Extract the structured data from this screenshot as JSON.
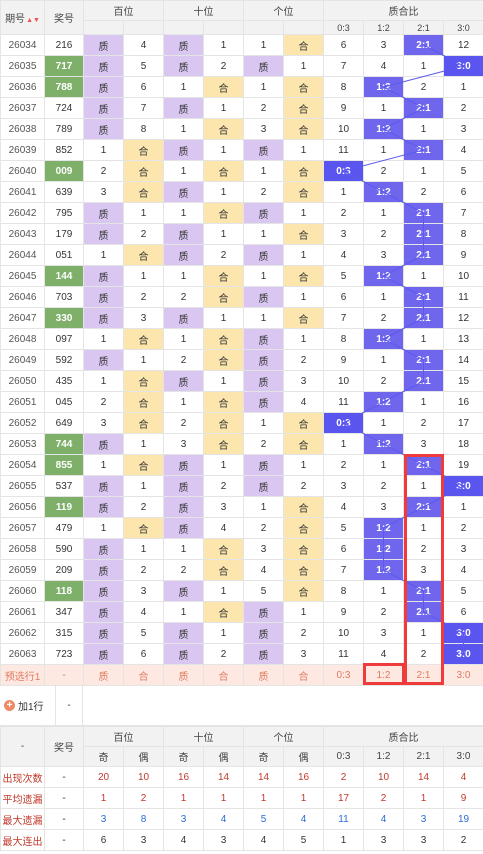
{
  "header": {
    "period": "期号",
    "award": "奖号",
    "groups": [
      "百位",
      "十位",
      "个位",
      "质合比"
    ],
    "sub_odd_even": [
      "奇",
      "偶"
    ],
    "ratios": [
      "0:3",
      "1:2",
      "2:1",
      "3:0"
    ]
  },
  "rows": [
    {
      "p": "26034",
      "n": "216",
      "g": [
        [
          "质",
          "4"
        ],
        [
          "质",
          "1"
        ],
        [
          "1",
          "合"
        ]
      ],
      "r": [
        "6",
        "3",
        "2:1",
        "12"
      ],
      "hl": 2,
      "pr": false
    },
    {
      "p": "26035",
      "n": "717",
      "g": [
        [
          "质",
          "5"
        ],
        [
          "质",
          "2"
        ],
        [
          "质",
          "1"
        ]
      ],
      "r": [
        "7",
        "4",
        "1",
        "3:0"
      ],
      "hl": 3,
      "pr": true
    },
    {
      "p": "26036",
      "n": "788",
      "g": [
        [
          "质",
          "6"
        ],
        [
          "1",
          "合"
        ],
        [
          "1",
          "合"
        ]
      ],
      "r": [
        "8",
        "1:2",
        "2",
        "1"
      ],
      "hl": 1,
      "pr": true
    },
    {
      "p": "26037",
      "n": "724",
      "g": [
        [
          "质",
          "7"
        ],
        [
          "质",
          "1"
        ],
        [
          "2",
          "合"
        ]
      ],
      "r": [
        "9",
        "1",
        "2:1",
        "2"
      ],
      "hl": 2,
      "pr": false
    },
    {
      "p": "26038",
      "n": "789",
      "g": [
        [
          "质",
          "8"
        ],
        [
          "1",
          "合"
        ],
        [
          "3",
          "合"
        ]
      ],
      "r": [
        "10",
        "1:2",
        "1",
        "3"
      ],
      "hl": 1,
      "pr": false
    },
    {
      "p": "26039",
      "n": "852",
      "g": [
        [
          "1",
          "合"
        ],
        [
          "质",
          "1"
        ],
        [
          "质",
          "1"
        ]
      ],
      "r": [
        "11",
        "1",
        "2:1",
        "4"
      ],
      "hl": 2,
      "pr": false
    },
    {
      "p": "26040",
      "n": "009",
      "g": [
        [
          "2",
          "合"
        ],
        [
          "1",
          "合"
        ],
        [
          "1",
          "合"
        ]
      ],
      "r": [
        "0:3",
        "2",
        "1",
        "5"
      ],
      "hl": 0,
      "pr": true
    },
    {
      "p": "26041",
      "n": "639",
      "g": [
        [
          "3",
          "合"
        ],
        [
          "质",
          "1"
        ],
        [
          "2",
          "合"
        ]
      ],
      "r": [
        "1",
        "1:2",
        "2",
        "6"
      ],
      "hl": 1,
      "pr": false
    },
    {
      "p": "26042",
      "n": "795",
      "g": [
        [
          "质",
          "1"
        ],
        [
          "1",
          "合"
        ],
        [
          "质",
          "1"
        ]
      ],
      "r": [
        "2",
        "1",
        "2:1",
        "7"
      ],
      "hl": 2,
      "pr": false
    },
    {
      "p": "26043",
      "n": "179",
      "g": [
        [
          "质",
          "2"
        ],
        [
          "质",
          "1"
        ],
        [
          "1",
          "合"
        ]
      ],
      "r": [
        "3",
        "2",
        "2:1",
        "8"
      ],
      "hl": 2,
      "pr": false
    },
    {
      "p": "26044",
      "n": "051",
      "g": [
        [
          "1",
          "合"
        ],
        [
          "质",
          "2"
        ],
        [
          "质",
          "1"
        ]
      ],
      "r": [
        "4",
        "3",
        "2:1",
        "9"
      ],
      "hl": 2,
      "pr": false
    },
    {
      "p": "26045",
      "n": "144",
      "g": [
        [
          "质",
          "1"
        ],
        [
          "1",
          "合"
        ],
        [
          "1",
          "合"
        ]
      ],
      "r": [
        "5",
        "1:2",
        "1",
        "10"
      ],
      "hl": 1,
      "pr": true
    },
    {
      "p": "26046",
      "n": "703",
      "g": [
        [
          "质",
          "2"
        ],
        [
          "2",
          "合"
        ],
        [
          "质",
          "1"
        ]
      ],
      "r": [
        "6",
        "1",
        "2:1",
        "11"
      ],
      "hl": 2,
      "pr": false
    },
    {
      "p": "26047",
      "n": "330",
      "g": [
        [
          "质",
          "3"
        ],
        [
          "质",
          "1"
        ],
        [
          "1",
          "合"
        ]
      ],
      "r": [
        "7",
        "2",
        "2:1",
        "12"
      ],
      "hl": 2,
      "pr": true
    },
    {
      "p": "26048",
      "n": "097",
      "g": [
        [
          "1",
          "合"
        ],
        [
          "1",
          "合"
        ],
        [
          "质",
          "1"
        ]
      ],
      "r": [
        "8",
        "1:2",
        "1",
        "13"
      ],
      "hl": 1,
      "pr": false
    },
    {
      "p": "26049",
      "n": "592",
      "g": [
        [
          "质",
          "1"
        ],
        [
          "2",
          "合"
        ],
        [
          "质",
          "2"
        ]
      ],
      "r": [
        "9",
        "1",
        "2:1",
        "14"
      ],
      "hl": 2,
      "pr": false
    },
    {
      "p": "26050",
      "n": "435",
      "g": [
        [
          "1",
          "合"
        ],
        [
          "质",
          "1"
        ],
        [
          "质",
          "3"
        ]
      ],
      "r": [
        "10",
        "2",
        "2:1",
        "15"
      ],
      "hl": 2,
      "pr": false
    },
    {
      "p": "26051",
      "n": "045",
      "g": [
        [
          "2",
          "合"
        ],
        [
          "1",
          "合"
        ],
        [
          "质",
          "4"
        ]
      ],
      "r": [
        "11",
        "1:2",
        "1",
        "16"
      ],
      "hl": 1,
      "pr": false
    },
    {
      "p": "26052",
      "n": "649",
      "g": [
        [
          "3",
          "合"
        ],
        [
          "2",
          "合"
        ],
        [
          "1",
          "合"
        ]
      ],
      "r": [
        "0:3",
        "1",
        "2",
        "17"
      ],
      "hl": 0,
      "pr": false
    },
    {
      "p": "26053",
      "n": "744",
      "g": [
        [
          "质",
          "1"
        ],
        [
          "3",
          "合"
        ],
        [
          "2",
          "合"
        ]
      ],
      "r": [
        "1",
        "1:2",
        "3",
        "18"
      ],
      "hl": 1,
      "pr": true
    },
    {
      "p": "26054",
      "n": "855",
      "g": [
        [
          "1",
          "合"
        ],
        [
          "质",
          "1"
        ],
        [
          "质",
          "1"
        ]
      ],
      "r": [
        "2",
        "1",
        "2:1",
        "19"
      ],
      "hl": 2,
      "pr": true
    },
    {
      "p": "26055",
      "n": "537",
      "g": [
        [
          "质",
          "1"
        ],
        [
          "质",
          "2"
        ],
        [
          "质",
          "2"
        ]
      ],
      "r": [
        "3",
        "2",
        "1",
        "3:0"
      ],
      "hl": 3,
      "pr": false
    },
    {
      "p": "26056",
      "n": "119",
      "g": [
        [
          "质",
          "2"
        ],
        [
          "质",
          "3"
        ],
        [
          "1",
          "合"
        ]
      ],
      "r": [
        "4",
        "3",
        "2:1",
        "1"
      ],
      "hl": 2,
      "pr": true
    },
    {
      "p": "26057",
      "n": "479",
      "g": [
        [
          "1",
          "合"
        ],
        [
          "质",
          "4"
        ],
        [
          "2",
          "合"
        ]
      ],
      "r": [
        "5",
        "1:2",
        "1",
        "2"
      ],
      "hl": 1,
      "pr": false
    },
    {
      "p": "26058",
      "n": "590",
      "g": [
        [
          "质",
          "1"
        ],
        [
          "1",
          "合"
        ],
        [
          "3",
          "合"
        ]
      ],
      "r": [
        "6",
        "1:2",
        "2",
        "3"
      ],
      "hl": 1,
      "pr": false
    },
    {
      "p": "26059",
      "n": "209",
      "g": [
        [
          "质",
          "2"
        ],
        [
          "2",
          "合"
        ],
        [
          "4",
          "合"
        ]
      ],
      "r": [
        "7",
        "1:2",
        "3",
        "4"
      ],
      "hl": 1,
      "pr": false
    },
    {
      "p": "26060",
      "n": "118",
      "g": [
        [
          "质",
          "3"
        ],
        [
          "质",
          "1"
        ],
        [
          "5",
          "合"
        ]
      ],
      "r": [
        "8",
        "1",
        "2:1",
        "5"
      ],
      "hl": 2,
      "pr": true
    },
    {
      "p": "26061",
      "n": "347",
      "g": [
        [
          "质",
          "4"
        ],
        [
          "1",
          "合"
        ],
        [
          "质",
          "1"
        ]
      ],
      "r": [
        "9",
        "2",
        "2:1",
        "6"
      ],
      "hl": 2,
      "pr": false
    },
    {
      "p": "26062",
      "n": "315",
      "g": [
        [
          "质",
          "5"
        ],
        [
          "质",
          "1"
        ],
        [
          "质",
          "2"
        ]
      ],
      "r": [
        "10",
        "3",
        "1",
        "3:0"
      ],
      "hl": 3,
      "pr": false
    },
    {
      "p": "26063",
      "n": "723",
      "g": [
        [
          "质",
          "6"
        ],
        [
          "质",
          "2"
        ],
        [
          "质",
          "3"
        ]
      ],
      "r": [
        "11",
        "4",
        "2",
        "3:0"
      ],
      "hl": 3,
      "pr": false
    }
  ],
  "predict": {
    "label": "预选行1",
    "award": "-",
    "cells": [
      "质",
      "合",
      "质",
      "合",
      "质",
      "合"
    ],
    "ratios": [
      "0:3",
      "1:2",
      "2:1",
      "3:0"
    ]
  },
  "add_row": {
    "label": "加1行",
    "icon": "+",
    "award": "-"
  },
  "stats": {
    "corner": "-",
    "award": "奖号",
    "rows": [
      {
        "label": "出现次数",
        "award": "-",
        "vals": [
          "20",
          "10",
          "16",
          "14",
          "14",
          "16",
          "2",
          "10",
          "14",
          "4"
        ],
        "cls": "v-occ"
      },
      {
        "label": "平均遗漏",
        "award": "-",
        "vals": [
          "1",
          "2",
          "1",
          "1",
          "1",
          "1",
          "17",
          "2",
          "1",
          "9"
        ],
        "cls": "v-avg"
      },
      {
        "label": "最大遗漏",
        "award": "-",
        "vals": [
          "3",
          "8",
          "3",
          "4",
          "5",
          "4",
          "11",
          "4",
          "3",
          "19"
        ],
        "cls": "v-max"
      },
      {
        "label": "最大连出",
        "award": "-",
        "vals": [
          "6",
          "3",
          "4",
          "3",
          "4",
          "5",
          "1",
          "3",
          "3",
          "2"
        ],
        "cls": "v-ser"
      }
    ]
  },
  "colors": {
    "prime": "#d9c6f1",
    "composite": "#fce6ad",
    "highlight": "#7066ee",
    "green": "#7eb06a",
    "redbox": "#ee3b3b"
  }
}
